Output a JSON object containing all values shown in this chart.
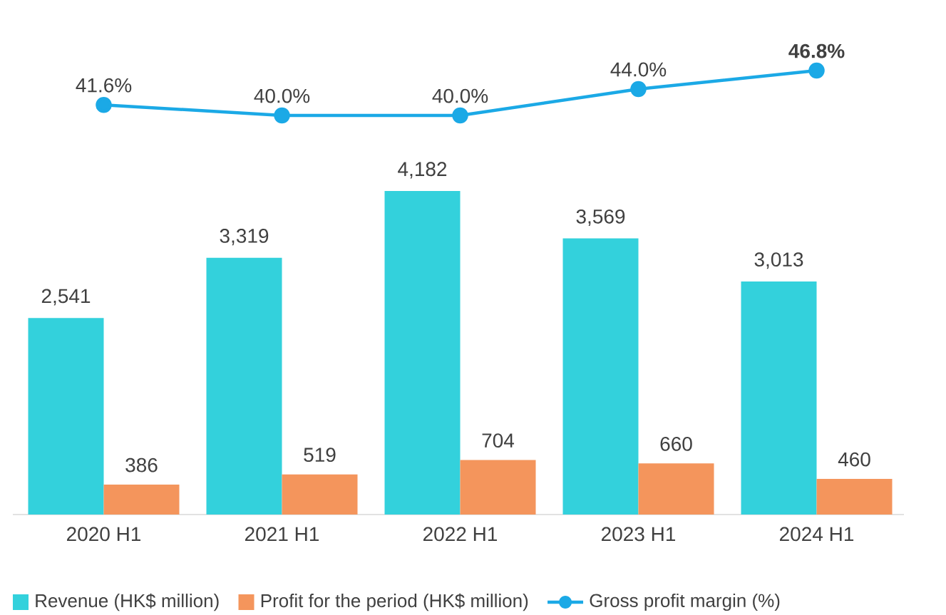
{
  "chart_data": [
    {
      "type": "line",
      "categories": [
        null,
        null,
        null,
        null,
        null
      ],
      "series": [
        {
          "name": "Gross profit margin (%)",
          "color": "#1ba9e6",
          "values": [
            41.6,
            40.0,
            40.0,
            44.0,
            46.8
          ],
          "value_labels": [
            "41.6%",
            "40.0%",
            "40.0%",
            "44.0%",
            "**46.8%**"
          ]
        }
      ],
      "marker": "circle",
      "tick_labels": false,
      "legend": "bottom"
    },
    {
      "type": "bar",
      "categories": [
        "2020 H1",
        "2021 H1",
        "2022 H1",
        "2023 H1",
        "2024 H1"
      ],
      "series": [
        {
          "name": "Revenue (HK$ million)",
          "color": "#33d1dc",
          "values": [
            2541,
            3319,
            4182,
            3569,
            3013
          ],
          "value_labels": [
            "2,541",
            "3,319",
            "4,182",
            "3,569",
            "3,013"
          ]
        },
        {
          "name": "Profit for the period (HK$ million)",
          "color": "#f4955c",
          "values": [
            386,
            519,
            704,
            660,
            460
          ],
          "value_labels": [
            "386",
            "519",
            "704",
            "660",
            "460"
          ]
        }
      ],
      "tick_labels": "x",
      "legend": "bottom"
    }
  ]
}
